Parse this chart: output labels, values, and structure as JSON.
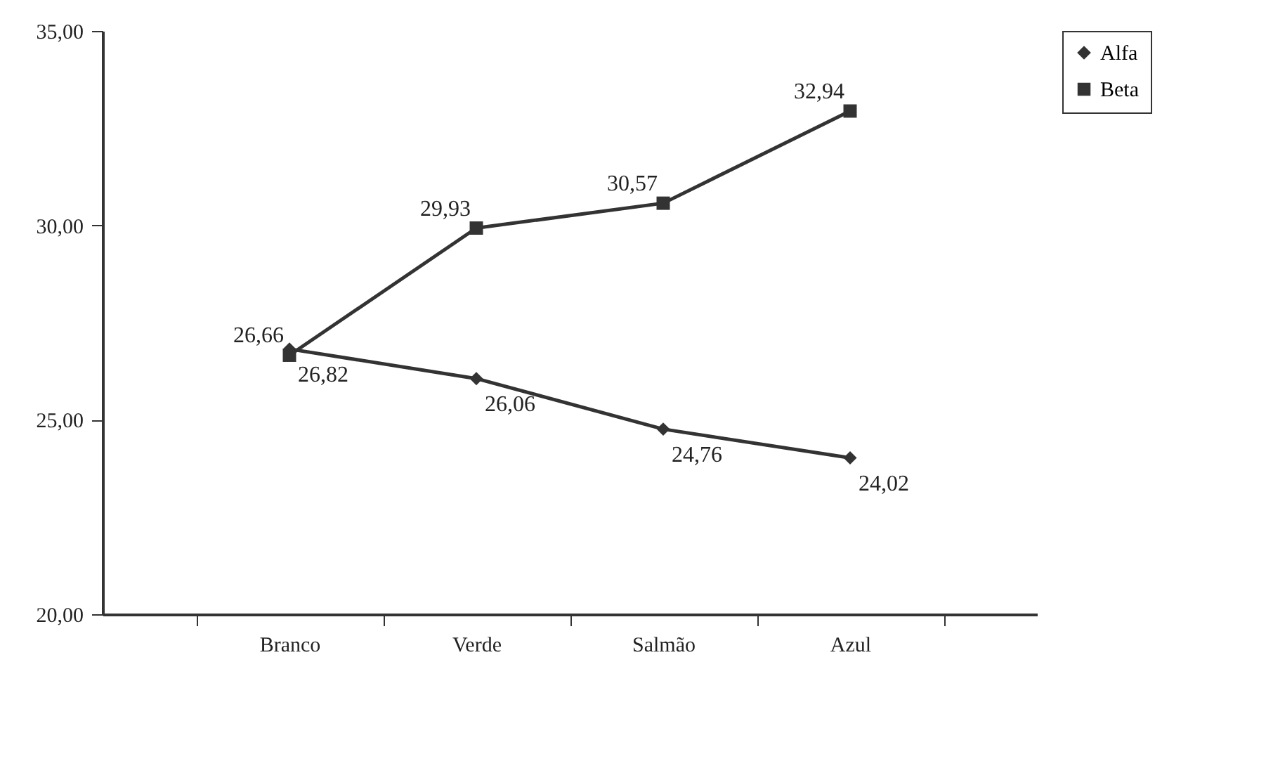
{
  "chart_data": {
    "type": "line",
    "categories": [
      "Branco",
      "Verde",
      "Salmão",
      "Azul"
    ],
    "series": [
      {
        "name": "Alfa",
        "color": "#333333",
        "marker": "diamond",
        "values": [
          26.82,
          26.06,
          24.76,
          24.02
        ],
        "value_labels": [
          "26,82",
          "26,06",
          "24,76",
          "24,02"
        ]
      },
      {
        "name": "Beta",
        "color": "#333333",
        "marker": "square",
        "values": [
          26.66,
          29.93,
          30.57,
          32.94
        ],
        "value_labels": [
          "26,66",
          "29,93",
          "30,57",
          "32,94"
        ]
      }
    ],
    "ylim": [
      20,
      35
    ],
    "yticks": [
      {
        "value": 20,
        "label": "20,00"
      },
      {
        "value": 25,
        "label": "25,00"
      },
      {
        "value": 30,
        "label": "30,00"
      },
      {
        "value": 35,
        "label": "35,00"
      }
    ],
    "grid": false,
    "legend": "right",
    "line_style": "solid"
  }
}
